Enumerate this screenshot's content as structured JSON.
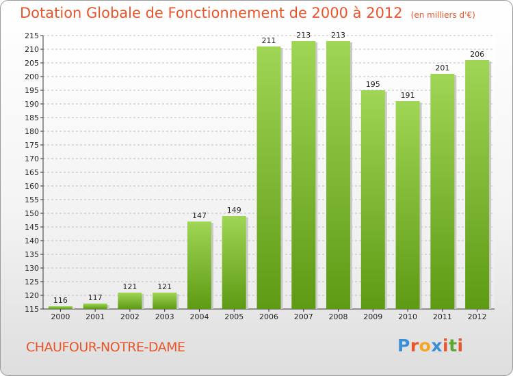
{
  "title": "Dotation Globale de Fonctionnement de 2000 à 2012",
  "subtitle": "(en milliers d'€)",
  "commune": "CHAUFOUR-NOTRE-DAME",
  "logo": {
    "text": "Proxiti",
    "letters": [
      "P",
      "r",
      "o",
      "x",
      "i",
      "t",
      "i"
    ],
    "colors": [
      "#3a8fd6",
      "#e8552a",
      "#f5a623",
      "#3a8fd6",
      "#e8552a",
      "#5aa832",
      "#e8552a"
    ]
  },
  "colors": {
    "title": "#e8552a",
    "bar_top": "#9fd655",
    "bar_bottom": "#5e9a14"
  },
  "chart_data": {
    "type": "bar",
    "title": "Dotation Globale de Fonctionnement de 2000 à 2012",
    "subtitle": "(en milliers d'€)",
    "categories": [
      "2000",
      "2001",
      "2002",
      "2003",
      "2004",
      "2005",
      "2006",
      "2007",
      "2008",
      "2009",
      "2010",
      "2011",
      "2012"
    ],
    "values": [
      116,
      117,
      121,
      121,
      147,
      149,
      211,
      213,
      213,
      195,
      191,
      201,
      206
    ],
    "ylim": [
      115,
      215
    ],
    "yticks": [
      115,
      120,
      125,
      130,
      135,
      140,
      145,
      150,
      155,
      160,
      165,
      170,
      175,
      180,
      185,
      190,
      195,
      200,
      205,
      210,
      215
    ],
    "grid": true,
    "xlabel": "",
    "ylabel": ""
  }
}
